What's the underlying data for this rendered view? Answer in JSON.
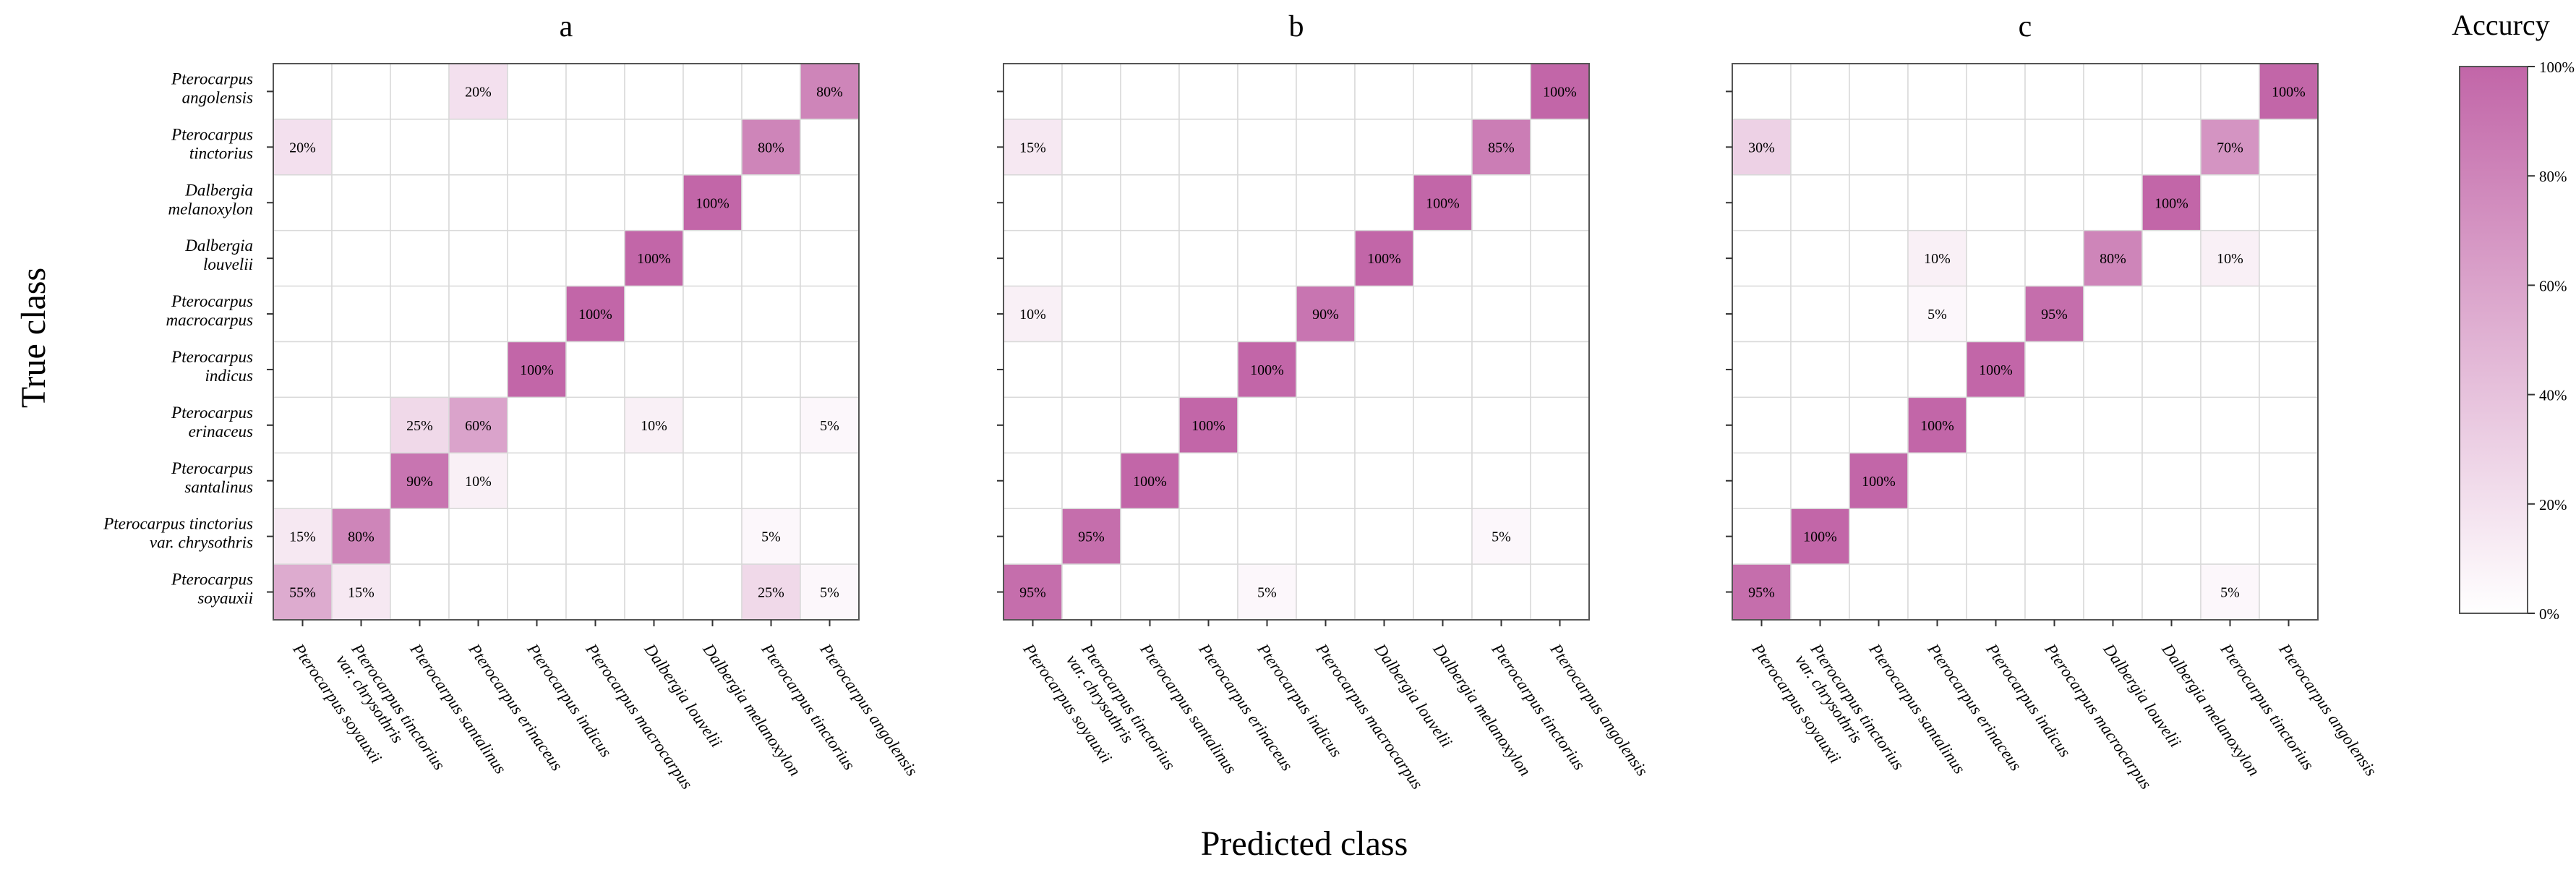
{
  "chart_data": {
    "type": "heatmap",
    "xlabel": "Predicted class",
    "ylabel": "True class",
    "classes_y_top_to_bottom": [
      [
        "Pterocarpus",
        "angolensis"
      ],
      [
        "Pterocarpus",
        "tinctorius"
      ],
      [
        "Dalbergia",
        "melanoxylon"
      ],
      [
        "Dalbergia",
        "louvelii"
      ],
      [
        "Pterocarpus",
        "macrocarpus"
      ],
      [
        "Pterocarpus",
        "indicus"
      ],
      [
        "Pterocarpus",
        "erinaceus"
      ],
      [
        "Pterocarpus",
        "santalinus"
      ],
      [
        "Pterocarpus tinctorius",
        "var. chrysothris"
      ],
      [
        "Pterocarpus",
        "soyauxii"
      ]
    ],
    "classes_x_left_to_right": [
      [
        "Pterocarpus soyauxii"
      ],
      [
        "Pterocarpus tinctorius",
        "var. chrysothris"
      ],
      [
        "Pterocarpus santalinus"
      ],
      [
        "Pterocarpus erinaceus"
      ],
      [
        "Pterocarpus indicus"
      ],
      [
        "Pterocarpus macrocarpus"
      ],
      [
        "Dalbergia louvelii"
      ],
      [
        "Dalbergia melanoxylon"
      ],
      [
        "Pterocarpus tinctorius"
      ],
      [
        "Pterocarpus angolensis"
      ]
    ],
    "value_unit": "%",
    "panels": [
      {
        "title": "a",
        "matrix": [
          [
            0,
            0,
            0,
            20,
            0,
            0,
            0,
            0,
            0,
            80
          ],
          [
            20,
            0,
            0,
            0,
            0,
            0,
            0,
            0,
            80,
            0
          ],
          [
            0,
            0,
            0,
            0,
            0,
            0,
            0,
            100,
            0,
            0
          ],
          [
            0,
            0,
            0,
            0,
            0,
            0,
            100,
            0,
            0,
            0
          ],
          [
            0,
            0,
            0,
            0,
            0,
            100,
            0,
            0,
            0,
            0
          ],
          [
            0,
            0,
            0,
            0,
            100,
            0,
            0,
            0,
            0,
            0
          ],
          [
            0,
            0,
            25,
            60,
            0,
            0,
            10,
            0,
            0,
            5
          ],
          [
            0,
            0,
            90,
            10,
            0,
            0,
            0,
            0,
            0,
            0
          ],
          [
            15,
            80,
            0,
            0,
            0,
            0,
            0,
            0,
            5,
            0
          ],
          [
            55,
            15,
            0,
            0,
            0,
            0,
            0,
            0,
            25,
            5
          ]
        ]
      },
      {
        "title": "b",
        "matrix": [
          [
            0,
            0,
            0,
            0,
            0,
            0,
            0,
            0,
            0,
            100
          ],
          [
            15,
            0,
            0,
            0,
            0,
            0,
            0,
            0,
            85,
            0
          ],
          [
            0,
            0,
            0,
            0,
            0,
            0,
            0,
            100,
            0,
            0
          ],
          [
            0,
            0,
            0,
            0,
            0,
            0,
            100,
            0,
            0,
            0
          ],
          [
            10,
            0,
            0,
            0,
            0,
            90,
            0,
            0,
            0,
            0
          ],
          [
            0,
            0,
            0,
            0,
            100,
            0,
            0,
            0,
            0,
            0
          ],
          [
            0,
            0,
            0,
            100,
            0,
            0,
            0,
            0,
            0,
            0
          ],
          [
            0,
            0,
            100,
            0,
            0,
            0,
            0,
            0,
            0,
            0
          ],
          [
            0,
            95,
            0,
            0,
            0,
            0,
            0,
            0,
            5,
            0
          ],
          [
            95,
            0,
            0,
            0,
            5,
            0,
            0,
            0,
            0,
            0
          ]
        ]
      },
      {
        "title": "c",
        "matrix": [
          [
            0,
            0,
            0,
            0,
            0,
            0,
            0,
            0,
            0,
            100
          ],
          [
            30,
            0,
            0,
            0,
            0,
            0,
            0,
            0,
            70,
            0
          ],
          [
            0,
            0,
            0,
            0,
            0,
            0,
            0,
            100,
            0,
            0
          ],
          [
            0,
            0,
            0,
            10,
            0,
            0,
            80,
            0,
            10,
            0
          ],
          [
            0,
            0,
            0,
            5,
            0,
            95,
            0,
            0,
            0,
            0
          ],
          [
            0,
            0,
            0,
            0,
            100,
            0,
            0,
            0,
            0,
            0
          ],
          [
            0,
            0,
            0,
            100,
            0,
            0,
            0,
            0,
            0,
            0
          ],
          [
            0,
            0,
            100,
            0,
            0,
            0,
            0,
            0,
            0,
            0
          ],
          [
            0,
            100,
            0,
            0,
            0,
            0,
            0,
            0,
            0,
            0
          ],
          [
            95,
            0,
            0,
            0,
            0,
            0,
            0,
            0,
            5,
            0
          ]
        ]
      }
    ],
    "colorbar": {
      "title": "Accurcy",
      "ticks": [
        "0%",
        "20%",
        "40%",
        "60%",
        "80%",
        "100%"
      ],
      "range": [
        0,
        100
      ],
      "color_low": "#ffffff",
      "color_high": "#c266a8"
    }
  }
}
